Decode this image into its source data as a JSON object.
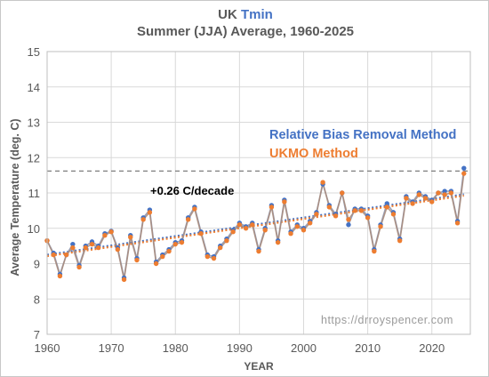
{
  "chart_data": {
    "type": "line",
    "title_prefix": "UK",
    "title_highlight": "Tmin",
    "subtitle": "Summer (JJA) Average, 1960-2025",
    "xlabel": "YEAR",
    "ylabel": "Average Temperature (deg. C)",
    "xlim": [
      1960,
      2026
    ],
    "ylim": [
      7,
      15
    ],
    "xticks": [
      "1960",
      "1970",
      "1980",
      "1990",
      "2000",
      "2010",
      "2020"
    ],
    "yticks": [
      "7",
      "8",
      "9",
      "10",
      "11",
      "12",
      "13",
      "14",
      "15"
    ],
    "grid": true,
    "x": [
      1960,
      1961,
      1962,
      1963,
      1964,
      1965,
      1966,
      1967,
      1968,
      1969,
      1970,
      1971,
      1972,
      1973,
      1974,
      1975,
      1976,
      1977,
      1978,
      1979,
      1980,
      1981,
      1982,
      1983,
      1984,
      1985,
      1986,
      1987,
      1988,
      1989,
      1990,
      1991,
      1992,
      1993,
      1994,
      1995,
      1996,
      1997,
      1998,
      1999,
      2000,
      2001,
      2002,
      2003,
      2004,
      2005,
      2006,
      2007,
      2008,
      2009,
      2010,
      2011,
      2012,
      2013,
      2014,
      2015,
      2016,
      2017,
      2018,
      2019,
      2020,
      2021,
      2022,
      2023,
      2024,
      2025
    ],
    "series": [
      {
        "name": "Relative Bias Removal Method",
        "color": "#4472c4",
        "values": [
          9.65,
          9.3,
          8.7,
          9.25,
          9.55,
          8.95,
          9.5,
          9.62,
          9.5,
          9.85,
          9.92,
          9.45,
          8.6,
          9.8,
          9.15,
          10.3,
          10.52,
          9.05,
          9.25,
          9.4,
          9.6,
          9.65,
          10.3,
          10.6,
          9.9,
          9.25,
          9.2,
          9.5,
          9.7,
          9.95,
          10.15,
          10.05,
          10.15,
          9.4,
          10.0,
          10.65,
          9.65,
          10.8,
          9.9,
          10.1,
          10.0,
          10.2,
          10.45,
          11.25,
          10.65,
          10.4,
          11.0,
          10.1,
          10.55,
          10.55,
          10.35,
          9.4,
          10.1,
          10.7,
          10.45,
          9.7,
          10.9,
          10.75,
          11.0,
          10.9,
          10.8,
          11.0,
          11.05,
          11.05,
          10.2,
          11.7
        ]
      },
      {
        "name": "UKMO Method",
        "color": "#ed7d31",
        "values": [
          9.65,
          9.25,
          8.65,
          9.25,
          9.45,
          8.9,
          9.45,
          9.55,
          9.45,
          9.8,
          9.9,
          9.4,
          8.55,
          9.75,
          9.1,
          10.25,
          10.45,
          9.0,
          9.2,
          9.35,
          9.55,
          9.6,
          10.25,
          10.55,
          9.85,
          9.2,
          9.15,
          9.45,
          9.65,
          9.9,
          10.1,
          10.0,
          10.1,
          9.35,
          9.95,
          10.6,
          9.6,
          10.75,
          9.85,
          10.05,
          9.95,
          10.15,
          10.4,
          11.3,
          10.6,
          10.35,
          11.0,
          10.25,
          10.5,
          10.5,
          10.3,
          9.35,
          10.05,
          10.6,
          10.4,
          9.65,
          10.85,
          10.7,
          10.95,
          10.85,
          10.75,
          11.0,
          10.95,
          11.0,
          10.15,
          11.55
        ]
      }
    ],
    "trend_label": "+0.26 C/decade",
    "trend_start": [
      1960,
      9.25
    ],
    "trend_end": [
      2025,
      10.96
    ],
    "reference_line_y": 11.62,
    "watermark": "https://drroyspencer.com"
  }
}
